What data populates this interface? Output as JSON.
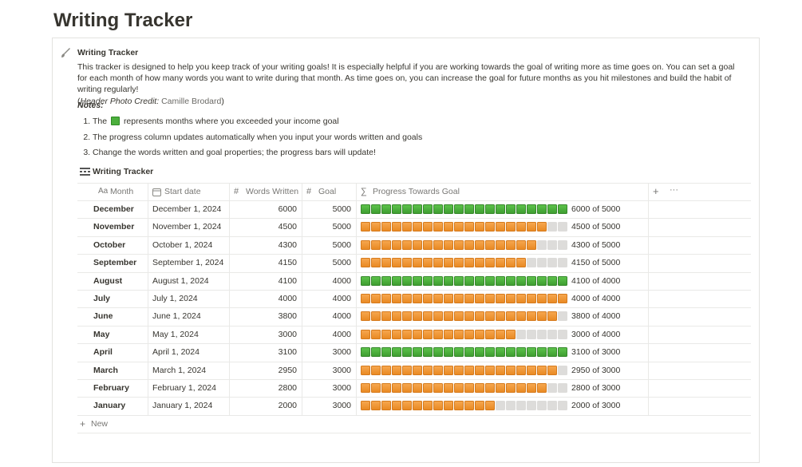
{
  "page_title": "Writing Tracker",
  "callout": {
    "heading": "Writing Tracker",
    "paragraph": "This tracker is designed to help you keep track of your writing goals! It is especially helpful if you are working towards the goal of writing more as time goes on. You can set a goal for each month of how many words you want to write during that month. As time goes on, you can increase the goal for future months as you hit milestones and build the habit of writing regularly!",
    "credit_open": "(",
    "credit_label": "Header Photo Credit:",
    "credit_name": "Camille Brodard",
    "credit_close": ")",
    "notes_label": "Notes:",
    "notes": [
      {
        "before": "The",
        "after": "represents months where you exceeded your income goal"
      },
      {
        "before": "The progress column updates automatically when you input your words written and goals"
      },
      {
        "before": "Change the words written and goal properties; the progress bars will update!"
      }
    ]
  },
  "table": {
    "title": "Writing Tracker",
    "columns": [
      {
        "icon": "Aa",
        "label": "Month"
      },
      {
        "label": "Start date"
      },
      {
        "icon": "#",
        "label": "Words Written"
      },
      {
        "icon": "#",
        "label": "Goal"
      },
      {
        "icon": "∑",
        "label": "Progress Towards Goal"
      }
    ],
    "rows": [
      {
        "month": "December",
        "start": "December 1, 2024",
        "words": 6000,
        "goal": 5000,
        "progress": "6000 of 5000"
      },
      {
        "month": "November",
        "start": "November 1, 2024",
        "words": 4500,
        "goal": 5000,
        "progress": "4500 of 5000"
      },
      {
        "month": "October",
        "start": "October 1, 2024",
        "words": 4300,
        "goal": 5000,
        "progress": "4300 of 5000"
      },
      {
        "month": "September",
        "start": "September 1, 2024",
        "words": 4150,
        "goal": 5000,
        "progress": "4150 of 5000"
      },
      {
        "month": "August",
        "start": "August 1, 2024",
        "words": 4100,
        "goal": 4000,
        "progress": "4100 of 4000"
      },
      {
        "month": "July",
        "start": "July 1, 2024",
        "words": 4000,
        "goal": 4000,
        "progress": "4000 of 4000"
      },
      {
        "month": "June",
        "start": "June 1, 2024",
        "words": 3800,
        "goal": 4000,
        "progress": "3800 of 4000"
      },
      {
        "month": "May",
        "start": "May 1, 2024",
        "words": 3000,
        "goal": 4000,
        "progress": "3000 of 4000"
      },
      {
        "month": "April",
        "start": "April 1, 2024",
        "words": 3100,
        "goal": 3000,
        "progress": "3100 of 3000"
      },
      {
        "month": "March",
        "start": "March 1, 2024",
        "words": 2950,
        "goal": 3000,
        "progress": "2950 of 3000"
      },
      {
        "month": "February",
        "start": "February 1, 2024",
        "words": 2800,
        "goal": 3000,
        "progress": "2800 of 3000"
      },
      {
        "month": "January",
        "start": "January 1, 2024",
        "words": 2000,
        "goal": 3000,
        "progress": "2000 of 3000"
      }
    ],
    "new_label": "New"
  }
}
